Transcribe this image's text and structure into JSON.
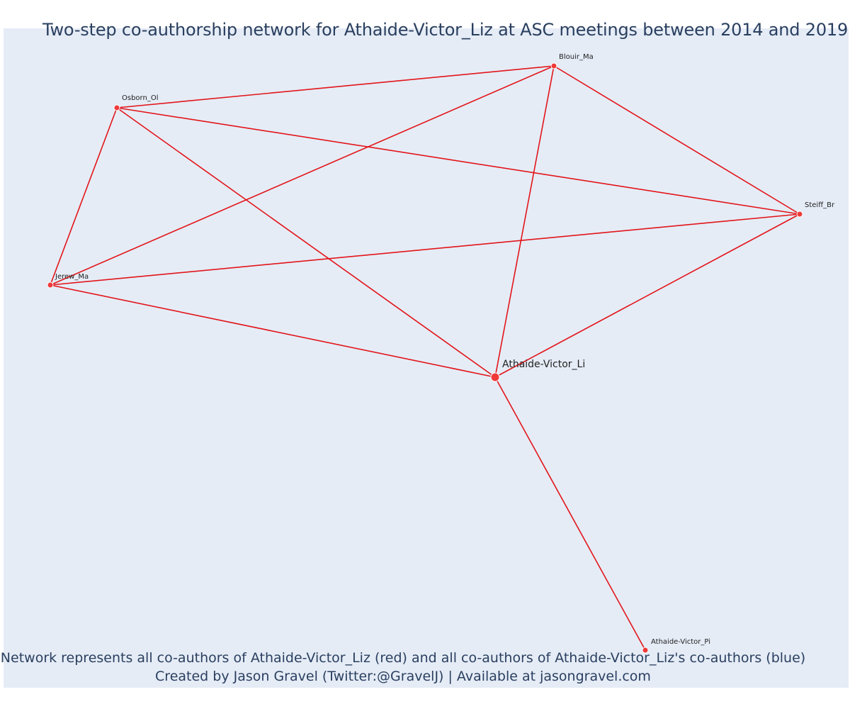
{
  "title": "Two-step co-authorship network for Athaide-Victor_Liz at ASC meetings between 2014 and 2019",
  "footer": {
    "line1": "Network represents all co-authors of Athaide-Victor_Liz (red) and all co-authors of Athaide-Victor_Liz's co-authors (blue)",
    "line2": "Created by Jason Gravel (Twitter:@GravelJ) | Available at jasongravel.com"
  },
  "colors": {
    "edge": "#e3151a",
    "node": "#ef3a3a",
    "plot_background": "#e5ecf6",
    "text": "#2a3f5f"
  },
  "network": {
    "nodes": [
      {
        "id": "Blouir_Ma",
        "label": "Blouir_Ma",
        "role": "co-author"
      },
      {
        "id": "Osborn_Ol",
        "label": "Osborn_Ol",
        "role": "co-author"
      },
      {
        "id": "Steiff_Br",
        "label": "Steiff_Br",
        "role": "co-author"
      },
      {
        "id": "Jerew_Ma",
        "label": "Jerew_Ma",
        "role": "co-author"
      },
      {
        "id": "Athaide-Victor_Li",
        "label": "Athaide-Victor_Li",
        "role": "focal"
      },
      {
        "id": "Athaide-Victor_Pi",
        "label": "Athaide-Victor_Pi",
        "role": "co-author"
      }
    ],
    "edges": [
      [
        "Osborn_Ol",
        "Blouir_Ma"
      ],
      [
        "Osborn_Ol",
        "Steiff_Br"
      ],
      [
        "Osborn_Ol",
        "Jerew_Ma"
      ],
      [
        "Osborn_Ol",
        "Athaide-Victor_Li"
      ],
      [
        "Blouir_Ma",
        "Steiff_Br"
      ],
      [
        "Blouir_Ma",
        "Jerew_Ma"
      ],
      [
        "Blouir_Ma",
        "Athaide-Victor_Li"
      ],
      [
        "Steiff_Br",
        "Jerew_Ma"
      ],
      [
        "Steiff_Br",
        "Athaide-Victor_Li"
      ],
      [
        "Jerew_Ma",
        "Athaide-Victor_Li"
      ],
      [
        "Athaide-Victor_Li",
        "Athaide-Victor_Pi"
      ]
    ]
  }
}
